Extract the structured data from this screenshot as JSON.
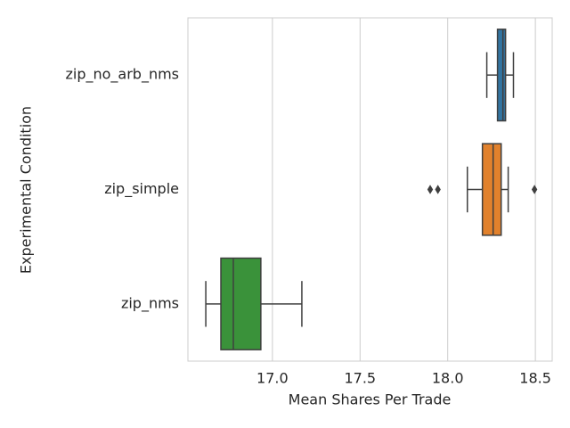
{
  "chart_data": {
    "type": "box",
    "xlabel": "Mean Shares Per Trade",
    "ylabel": "Experimental Condition",
    "categories": [
      "zip_no_arb_nms",
      "zip_simple",
      "zip_nms"
    ],
    "boxes": [
      {
        "color": "#3274a1",
        "whisker_low": 18.223,
        "q1": 18.284,
        "median": 18.315,
        "q3": 18.33,
        "whisker_high": 18.375,
        "outliers": []
      },
      {
        "color": "#e1812c",
        "whisker_low": 18.112,
        "q1": 18.198,
        "median": 18.259,
        "q3": 18.305,
        "whisker_high": 18.345,
        "outliers": [
          17.9,
          17.944,
          18.495
        ]
      },
      {
        "color": "#3a923a",
        "whisker_low": 16.62,
        "q1": 16.706,
        "median": 16.777,
        "q3": 16.934,
        "whisker_high": 17.168,
        "outliers": []
      }
    ],
    "xlim": [
      16.518,
      18.596
    ],
    "xticks": [
      {
        "value": 17,
        "label": "17.0"
      },
      17.5,
      {
        "value": 18,
        "label": "18.0"
      },
      18.5
    ],
    "grid": true
  }
}
